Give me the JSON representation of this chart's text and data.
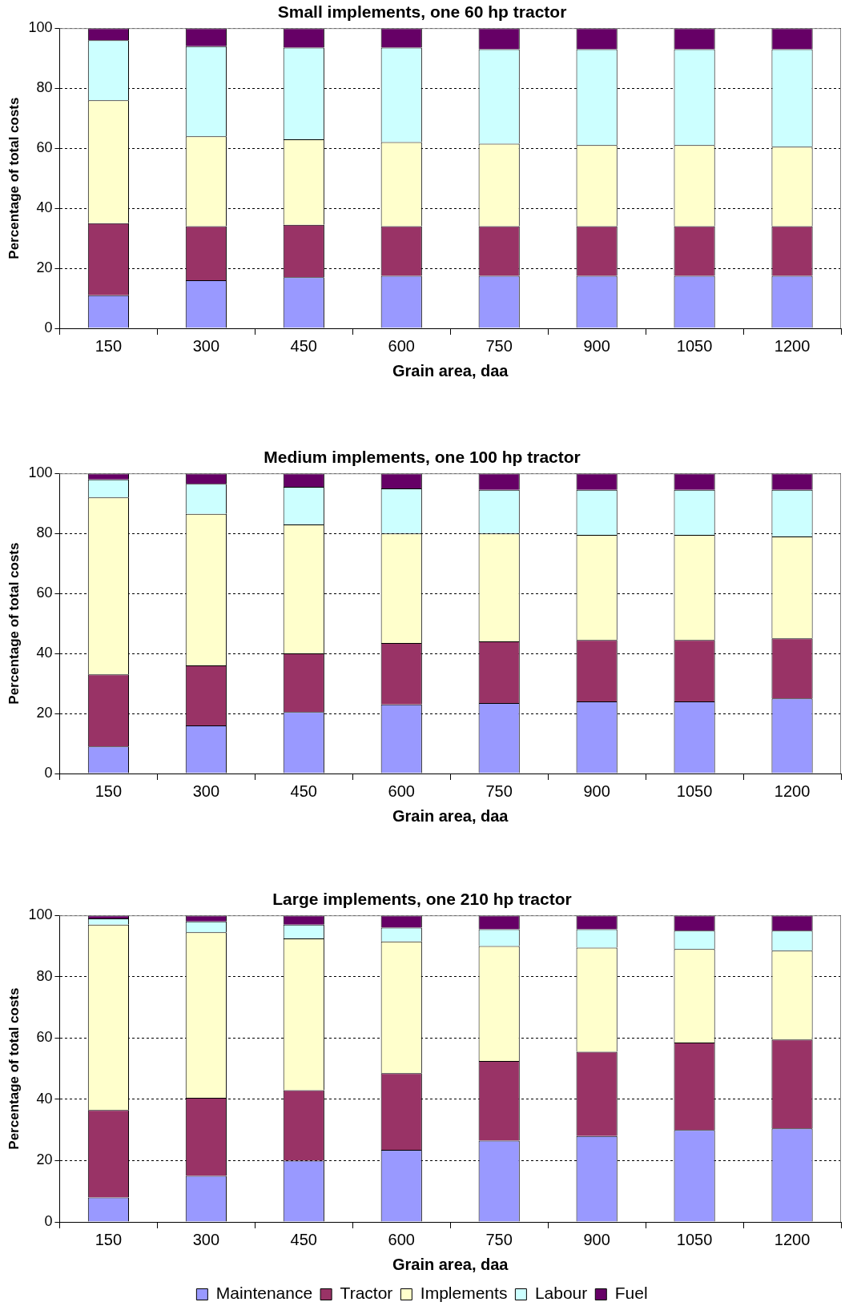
{
  "chart_data": [
    {
      "type": "bar",
      "title": "Small implements, one 60 hp tractor",
      "xlabel": "Grain area, daa",
      "ylabel": "Percentage of total costs",
      "categories": [
        "150",
        "300",
        "450",
        "600",
        "750",
        "900",
        "1050",
        "1200"
      ],
      "stacked": true,
      "ylim": [
        0,
        100
      ],
      "yticks": [
        0,
        20,
        40,
        60,
        80,
        100
      ],
      "grid": "y",
      "legend": false,
      "series": [
        {
          "color": "#9999ff",
          "values": [
            11,
            16,
            17,
            17.5,
            17.5,
            17.5,
            17.5,
            17.5
          ]
        },
        {
          "color": "#993366",
          "values": [
            24,
            18,
            17.5,
            16.5,
            16.5,
            16.5,
            16.5,
            16.5
          ]
        },
        {
          "color": "#ffffcc",
          "values": [
            41,
            30,
            28.5,
            28,
            27.5,
            27,
            27,
            26.5
          ]
        },
        {
          "color": "#ccffff",
          "values": [
            20,
            30,
            30.5,
            31.5,
            31.5,
            32,
            32,
            32.5
          ]
        },
        {
          "color": "#660066",
          "values": [
            4,
            6,
            6.5,
            6.5,
            7,
            7,
            7,
            7
          ]
        }
      ]
    },
    {
      "type": "bar",
      "title": "Medium implements, one 100 hp tractor",
      "xlabel": "Grain area, daa",
      "ylabel": "Percentage of total costs",
      "categories": [
        "150",
        "300",
        "450",
        "600",
        "750",
        "900",
        "1050",
        "1200"
      ],
      "stacked": true,
      "ylim": [
        0,
        100
      ],
      "yticks": [
        0,
        20,
        40,
        60,
        80,
        100
      ],
      "grid": "y",
      "legend": false,
      "series": [
        {
          "color": "#9999ff",
          "values": [
            9,
            16,
            20.5,
            23,
            23.5,
            24,
            24,
            25
          ]
        },
        {
          "color": "#993366",
          "values": [
            24,
            20,
            19.5,
            20.5,
            20.5,
            20.5,
            20.5,
            20
          ]
        },
        {
          "color": "#ffffcc",
          "values": [
            59,
            50.5,
            43,
            36.5,
            36,
            35,
            35,
            34
          ]
        },
        {
          "color": "#ccffff",
          "values": [
            6,
            10,
            12.5,
            15,
            14.5,
            15,
            15,
            15.5
          ]
        },
        {
          "color": "#660066",
          "values": [
            2,
            3.5,
            4.5,
            5,
            5.5,
            5.5,
            5.5,
            5.5
          ]
        }
      ]
    },
    {
      "type": "bar",
      "title": "Large implements, one 210 hp tractor",
      "xlabel": "Grain area, daa",
      "ylabel": "Percentage of total costs",
      "categories": [
        "150",
        "300",
        "450",
        "600",
        "750",
        "900",
        "1050",
        "1200"
      ],
      "stacked": true,
      "ylim": [
        0,
        100
      ],
      "yticks": [
        0,
        20,
        40,
        60,
        80,
        100
      ],
      "grid": "y",
      "legend": "bottom",
      "series": [
        {
          "name": "Maintenance",
          "color": "#9999ff",
          "values": [
            8,
            15,
            20,
            23.5,
            26.5,
            28,
            30,
            30.5
          ]
        },
        {
          "name": "Tractor",
          "color": "#993366",
          "values": [
            28.5,
            25.5,
            23,
            25,
            26,
            27.5,
            28.5,
            29
          ]
        },
        {
          "name": "Implements",
          "color": "#ffffcc",
          "values": [
            60.5,
            54,
            49.5,
            43,
            37.5,
            34,
            30.5,
            29
          ]
        },
        {
          "name": "Labour",
          "color": "#ccffff",
          "values": [
            2,
            3.5,
            4.5,
            4.5,
            5.5,
            6,
            6,
            6.5
          ]
        },
        {
          "name": "Fuel",
          "color": "#660066",
          "values": [
            1,
            2,
            3,
            4,
            4.5,
            4.5,
            5,
            5
          ]
        }
      ]
    }
  ]
}
